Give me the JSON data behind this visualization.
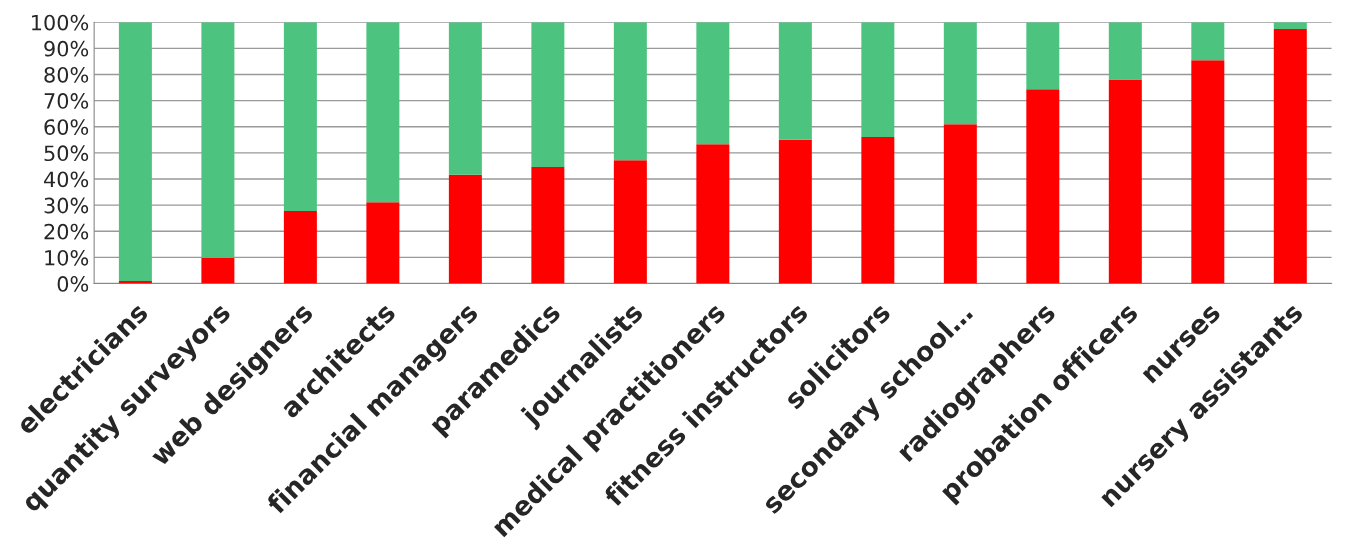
{
  "chart_data": {
    "type": "bar",
    "stacked": true,
    "categories": [
      "electricians",
      "quantity surveyors",
      "web designers",
      "architects",
      "financial managers",
      "paramedics",
      "journalists",
      "medical practitioners",
      "fitness instructors",
      "solicitors",
      "secondary school…",
      "radiographers",
      "probation officers",
      "nurses",
      "nursery assistants"
    ],
    "series": [
      {
        "color": "#ff0000",
        "values": [
          1.0,
          9.8,
          27.8,
          31.1,
          41.6,
          44.6,
          47.2,
          53.3,
          55.0,
          56.1,
          61.0,
          74.4,
          78.1,
          85.5,
          97.4
        ]
      },
      {
        "color": "#4cc47f",
        "values": [
          99.0,
          90.2,
          72.2,
          68.9,
          58.4,
          55.4,
          52.8,
          46.7,
          45.0,
          43.9,
          39.0,
          25.6,
          21.9,
          14.5,
          2.6
        ]
      }
    ],
    "ylim": [
      0,
      100
    ],
    "yticks": [
      {
        "value": 0,
        "label": "0%"
      },
      {
        "value": 10,
        "label": "10%"
      },
      {
        "value": 20,
        "label": "20%"
      },
      {
        "value": 30,
        "label": "30%"
      },
      {
        "value": 40,
        "label": "40%"
      },
      {
        "value": 50,
        "label": "50%"
      },
      {
        "value": 60,
        "label": "60%"
      },
      {
        "value": 70,
        "label": "70%"
      },
      {
        "value": 80,
        "label": "80%"
      },
      {
        "value": 90,
        "label": "90%"
      },
      {
        "value": 100,
        "label": "100%"
      }
    ],
    "grid": "y"
  }
}
